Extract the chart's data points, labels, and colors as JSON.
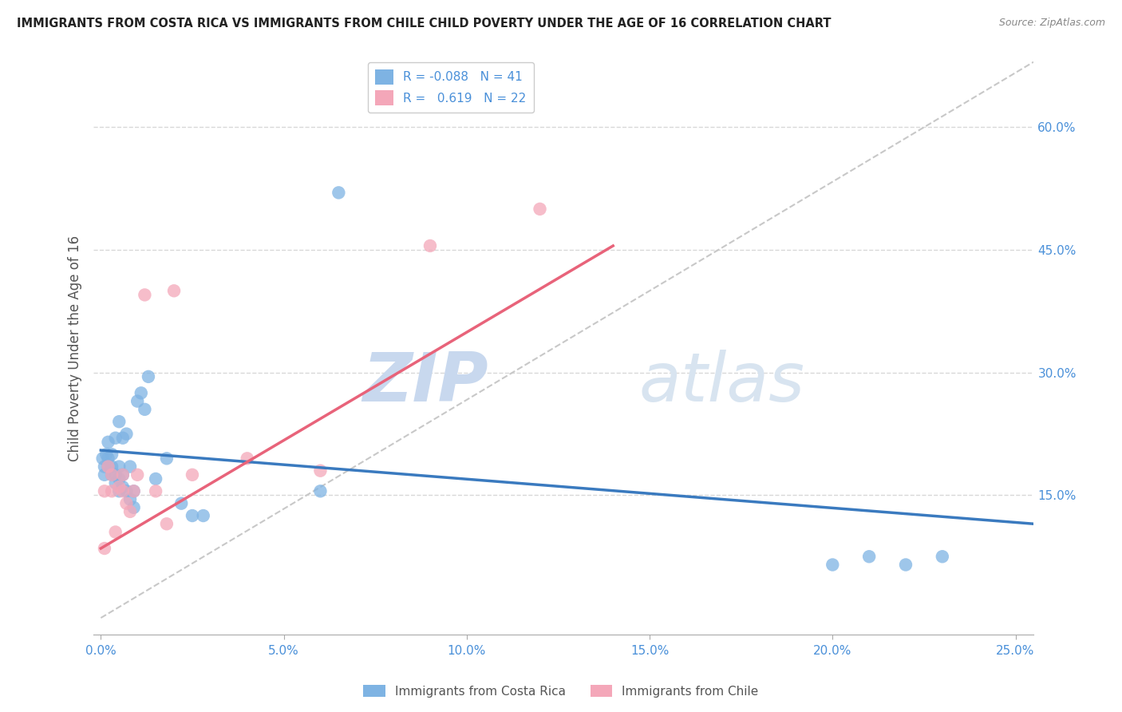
{
  "title": "IMMIGRANTS FROM COSTA RICA VS IMMIGRANTS FROM CHILE CHILD POVERTY UNDER THE AGE OF 16 CORRELATION CHART",
  "source": "Source: ZipAtlas.com",
  "ylabel": "Child Poverty Under the Age of 16",
  "xlim": [
    -0.002,
    0.255
  ],
  "ylim": [
    -0.02,
    0.68
  ],
  "xticks": [
    0.0,
    0.05,
    0.1,
    0.15,
    0.2,
    0.25
  ],
  "yticks_right": [
    0.15,
    0.3,
    0.45,
    0.6
  ],
  "ytick_labels_right": [
    "15.0%",
    "30.0%",
    "45.0%",
    "60.0%"
  ],
  "xtick_labels": [
    "0.0%",
    "5.0%",
    "10.0%",
    "15.0%",
    "20.0%",
    "25.0%"
  ],
  "costa_rica_R": -0.088,
  "costa_rica_N": 41,
  "chile_R": 0.619,
  "chile_N": 22,
  "costa_rica_color": "#7eb3e3",
  "chile_color": "#f4a7b9",
  "costa_rica_line_color": "#3a7abf",
  "chile_line_color": "#e8637a",
  "diagonal_color": "#c8c8c8",
  "watermark_zip": "ZIP",
  "watermark_atlas": "atlas",
  "background_color": "#ffffff",
  "grid_color": "#d8d8d8",
  "costa_rica_x": [
    0.0005,
    0.001,
    0.001,
    0.0015,
    0.002,
    0.002,
    0.002,
    0.003,
    0.003,
    0.003,
    0.004,
    0.004,
    0.004,
    0.005,
    0.005,
    0.005,
    0.005,
    0.006,
    0.006,
    0.006,
    0.007,
    0.007,
    0.008,
    0.008,
    0.009,
    0.009,
    0.01,
    0.011,
    0.012,
    0.013,
    0.015,
    0.018,
    0.022,
    0.025,
    0.028,
    0.06,
    0.065,
    0.2,
    0.21,
    0.22,
    0.23
  ],
  "costa_rica_y": [
    0.195,
    0.185,
    0.175,
    0.2,
    0.185,
    0.195,
    0.215,
    0.175,
    0.185,
    0.2,
    0.165,
    0.175,
    0.22,
    0.155,
    0.17,
    0.185,
    0.24,
    0.16,
    0.175,
    0.22,
    0.155,
    0.225,
    0.145,
    0.185,
    0.135,
    0.155,
    0.265,
    0.275,
    0.255,
    0.295,
    0.17,
    0.195,
    0.14,
    0.125,
    0.125,
    0.155,
    0.52,
    0.065,
    0.075,
    0.065,
    0.075
  ],
  "chile_x": [
    0.001,
    0.001,
    0.002,
    0.003,
    0.003,
    0.004,
    0.005,
    0.006,
    0.006,
    0.007,
    0.008,
    0.009,
    0.01,
    0.012,
    0.015,
    0.018,
    0.02,
    0.025,
    0.04,
    0.06,
    0.09,
    0.12
  ],
  "chile_y": [
    0.085,
    0.155,
    0.185,
    0.155,
    0.175,
    0.105,
    0.16,
    0.155,
    0.175,
    0.14,
    0.13,
    0.155,
    0.175,
    0.395,
    0.155,
    0.115,
    0.4,
    0.175,
    0.195,
    0.18,
    0.455,
    0.5
  ],
  "chile_line_x0": 0.0,
  "chile_line_y0": 0.085,
  "chile_line_x1": 0.14,
  "chile_line_y1": 0.455,
  "cr_line_x0": 0.0,
  "cr_line_y0": 0.205,
  "cr_line_x1": 0.255,
  "cr_line_y1": 0.115
}
